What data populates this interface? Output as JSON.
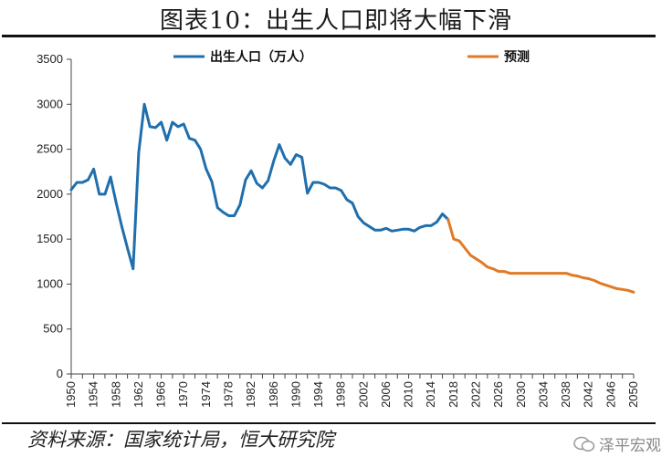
{
  "title": "图表10：出生人口即将大幅下滑",
  "source": "资料来源：国家统计局，恒大研究院",
  "watermark": "泽平宏观",
  "colors": {
    "history": "#1f6fae",
    "forecast": "#e07a26"
  },
  "chart_data": {
    "type": "line",
    "ylim": [
      0,
      3500
    ],
    "yticks": [
      0,
      500,
      1000,
      1500,
      2000,
      2500,
      3000,
      3500
    ],
    "xlim": [
      1950,
      2050
    ],
    "xticks": [
      1950,
      1954,
      1958,
      1962,
      1966,
      1970,
      1974,
      1978,
      1982,
      1986,
      1990,
      1994,
      1998,
      2002,
      2006,
      2010,
      2014,
      2018,
      2022,
      2026,
      2030,
      2034,
      2038,
      2042,
      2046,
      2050
    ],
    "grid": false,
    "legend_position": "top",
    "series": [
      {
        "name": "出生人口（万人）",
        "color": "#1f6fae",
        "x": [
          1950,
          1951,
          1952,
          1953,
          1954,
          1955,
          1956,
          1957,
          1958,
          1959,
          1960,
          1961,
          1962,
          1963,
          1964,
          1965,
          1966,
          1967,
          1968,
          1969,
          1970,
          1971,
          1972,
          1973,
          1974,
          1975,
          1976,
          1977,
          1978,
          1979,
          1980,
          1981,
          1982,
          1983,
          1984,
          1985,
          1986,
          1987,
          1988,
          1989,
          1990,
          1991,
          1992,
          1993,
          1994,
          1995,
          1996,
          1997,
          1998,
          1999,
          2000,
          2001,
          2002,
          2003,
          2004,
          2005,
          2006,
          2007,
          2008,
          2009,
          2010,
          2011,
          2012,
          2013,
          2014,
          2015,
          2016,
          2017
        ],
        "y": [
          2050,
          2130,
          2130,
          2160,
          2280,
          2000,
          2000,
          2190,
          1900,
          1640,
          1400,
          1170,
          2460,
          3000,
          2750,
          2740,
          2800,
          2600,
          2800,
          2750,
          2780,
          2620,
          2600,
          2500,
          2280,
          2140,
          1850,
          1800,
          1760,
          1760,
          1880,
          2160,
          2260,
          2120,
          2070,
          2150,
          2370,
          2550,
          2400,
          2330,
          2440,
          2410,
          2010,
          2130,
          2130,
          2110,
          2070,
          2070,
          2040,
          1940,
          1900,
          1750,
          1680,
          1640,
          1600,
          1600,
          1620,
          1590,
          1600,
          1610,
          1610,
          1590,
          1630,
          1650,
          1650,
          1690,
          1780,
          1720
        ]
      },
      {
        "name": "预测",
        "color": "#e07a26",
        "x": [
          2017,
          2018,
          2019,
          2020,
          2021,
          2022,
          2023,
          2024,
          2025,
          2026,
          2027,
          2028,
          2029,
          2030,
          2031,
          2032,
          2033,
          2034,
          2035,
          2036,
          2037,
          2038,
          2039,
          2040,
          2041,
          2042,
          2043,
          2044,
          2045,
          2046,
          2047,
          2048,
          2049,
          2050
        ],
        "y": [
          1720,
          1500,
          1480,
          1400,
          1320,
          1280,
          1240,
          1190,
          1170,
          1140,
          1140,
          1120,
          1120,
          1120,
          1120,
          1120,
          1120,
          1120,
          1120,
          1120,
          1120,
          1120,
          1100,
          1090,
          1070,
          1060,
          1040,
          1010,
          990,
          970,
          950,
          940,
          930,
          910
        ]
      }
    ]
  }
}
